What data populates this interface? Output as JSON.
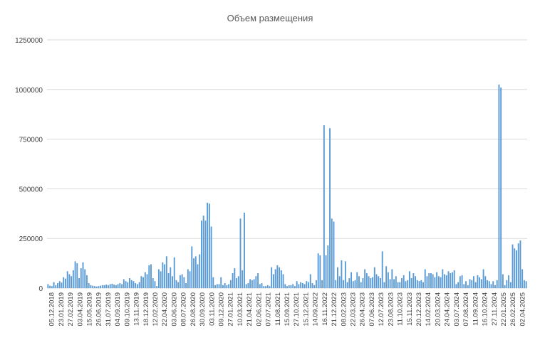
{
  "chart_data": {
    "type": "bar",
    "title": "Объем размещения",
    "xlabel": "",
    "ylabel": "",
    "ylim": [
      0,
      1250000
    ],
    "yticks": [
      0,
      250000,
      500000,
      750000,
      1000000,
      1250000
    ],
    "grid": true,
    "legend": "none",
    "bar_color": "#5b9bd5",
    "x_tick_labels": [
      "05.12.2018",
      "23.01.2019",
      "27.02.2019",
      "03.04.2019",
      "15.05.2019",
      "26.06.2019",
      "31.07.2019",
      "04.09.2019",
      "09.10.2019",
      "13.11.2019",
      "18.12.2019",
      "12.02.2020",
      "22.04.2020",
      "03.06.2020",
      "08.07.2020",
      "26.08.2020",
      "30.09.2020",
      "03.11.2020",
      "09.12.2020",
      "27.01.2021",
      "10.03.2021",
      "21.04.2021",
      "02.06.2021",
      "07.07.2021",
      "11.08.2021",
      "15.09.2021",
      "27.10.2021",
      "15.12.2021",
      "14.09.2022",
      "16.11.2022",
      "21.12.2022",
      "08.02.2023",
      "22.03.2023",
      "26.04.2023",
      "07.06.2023",
      "12.07.2023",
      "23.08.2023",
      "11.10.2023",
      "15.11.2023",
      "20.12.2023",
      "14.02.2024",
      "20.03.2024",
      "24.04.2024",
      "03.07.2024",
      "07.08.2024",
      "11.09.2024",
      "16.10.2024",
      "27.11.2024",
      "22.01.2025",
      "26.02.2025",
      "02.04.2025"
    ],
    "values": [
      20000,
      12000,
      10000,
      30000,
      15000,
      25000,
      35000,
      28000,
      55000,
      48000,
      85000,
      70000,
      60000,
      90000,
      135000,
      125000,
      50000,
      100000,
      130000,
      95000,
      65000,
      25000,
      15000,
      12000,
      10000,
      8000,
      10000,
      12000,
      15000,
      15000,
      18000,
      15000,
      20000,
      22000,
      18000,
      15000,
      20000,
      25000,
      20000,
      45000,
      35000,
      30000,
      50000,
      40000,
      35000,
      25000,
      20000,
      30000,
      60000,
      55000,
      80000,
      70000,
      115000,
      120000,
      50000,
      35000,
      10000,
      95000,
      85000,
      130000,
      120000,
      160000,
      75000,
      105000,
      60000,
      155000,
      40000,
      30000,
      65000,
      70000,
      55000,
      25000,
      95000,
      85000,
      210000,
      150000,
      160000,
      120000,
      170000,
      340000,
      365000,
      340000,
      430000,
      425000,
      310000,
      55000,
      15000,
      20000,
      20000,
      55000,
      15000,
      25000,
      15000,
      20000,
      40000,
      75000,
      100000,
      50000,
      60000,
      350000,
      90000,
      380000,
      20000,
      25000,
      45000,
      40000,
      45000,
      60000,
      75000,
      20000,
      25000,
      10000,
      10000,
      15000,
      10000,
      105000,
      70000,
      95000,
      115000,
      105000,
      90000,
      70000,
      20000,
      10000,
      15000,
      15000,
      20000,
      10000,
      35000,
      20000,
      30000,
      25000,
      20000,
      35000,
      30000,
      70000,
      25000,
      15000,
      40000,
      175000,
      165000,
      40000,
      820000,
      165000,
      215000,
      805000,
      350000,
      335000,
      40000,
      105000,
      60000,
      140000,
      40000,
      135000,
      30000,
      50000,
      80000,
      35000,
      40000,
      80000,
      60000,
      30000,
      50000,
      95000,
      75000,
      60000,
      50000,
      55000,
      105000,
      70000,
      60000,
      50000,
      185000,
      30000,
      110000,
      80000,
      45000,
      95000,
      45000,
      60000,
      30000,
      30000,
      50000,
      65000,
      35000,
      40000,
      85000,
      50000,
      75000,
      60000,
      40000,
      35000,
      40000,
      30000,
      95000,
      60000,
      75000,
      75000,
      70000,
      55000,
      80000,
      60000,
      55000,
      95000,
      70000,
      65000,
      85000,
      75000,
      80000,
      90000,
      20000,
      30000,
      60000,
      65000,
      20000,
      35000,
      15000,
      45000,
      40000,
      60000,
      30000,
      65000,
      55000,
      45000,
      95000,
      60000,
      40000,
      35000,
      20000,
      35000,
      15000,
      40000,
      1025000,
      1010000,
      70000,
      15000,
      40000,
      65000,
      30000,
      220000,
      200000,
      190000,
      225000,
      240000,
      95000,
      40000,
      35000
    ]
  }
}
